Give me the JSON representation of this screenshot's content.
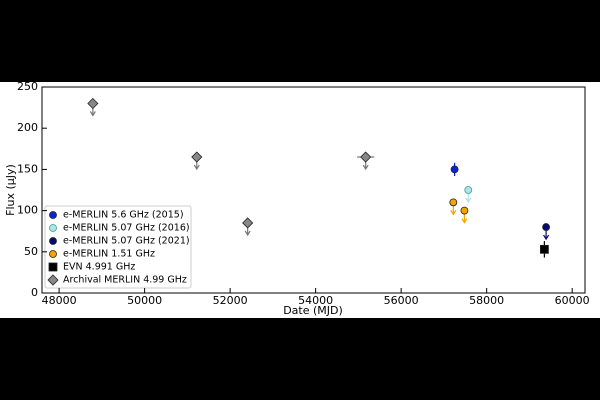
{
  "chart_data": {
    "type": "scatter",
    "x_label": "Date (MJD)",
    "y_label": "Flux (μJy)",
    "xlim": [
      47600,
      60300
    ],
    "ylim": [
      0,
      250
    ],
    "xticks": [
      48000,
      50000,
      52000,
      54000,
      56000,
      58000,
      60000
    ],
    "yticks": [
      0,
      50,
      100,
      150,
      200,
      250
    ],
    "legend": "lower left",
    "series": [
      {
        "name": "e-MERLIN 5.6 GHz (2015)",
        "color": "#0b24d6",
        "marker": "circle",
        "upper_limit": false,
        "x": [
          57250
        ],
        "values": [
          150
        ],
        "yerr": [
          8
        ]
      },
      {
        "name": "e-MERLIN 5.07 GHz (2016)",
        "color": "#aee6e6",
        "marker": "circle",
        "upper_limit": true,
        "x": [
          57570
        ],
        "values": [
          125
        ]
      },
      {
        "name": "e-MERLIN 5.07 GHz (2021)",
        "color": "#0a0a6e",
        "marker": "circle",
        "upper_limit": true,
        "x": [
          59390
        ],
        "values": [
          80
        ]
      },
      {
        "name": "e-MERLIN 1.51 GHz",
        "color": "#f5a400",
        "marker": "circle",
        "upper_limit": true,
        "x": [
          57220,
          57480
        ],
        "values": [
          110,
          100
        ]
      },
      {
        "name": "EVN 4.991 GHz",
        "color": "#000000",
        "marker": "square",
        "upper_limit": false,
        "x": [
          59350
        ],
        "values": [
          53
        ],
        "yerr": [
          10
        ]
      },
      {
        "name": "Archival MERLIN 4.99 GHz",
        "color": "#888888",
        "marker": "diamond",
        "upper_limit": true,
        "x": [
          48790,
          51220,
          52410,
          55170
        ],
        "values": [
          230,
          165,
          85,
          165
        ],
        "xerr": [
          null,
          null,
          null,
          200
        ]
      }
    ]
  }
}
